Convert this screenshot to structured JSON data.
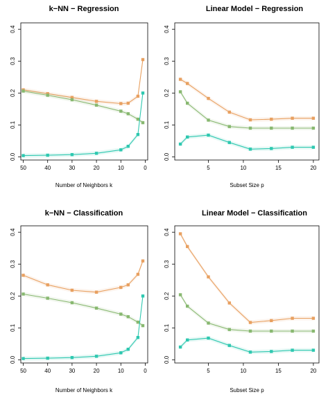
{
  "chart_data": [
    {
      "type": "line",
      "title": "k−NN − Regression",
      "xlabel": "Number of Neighbors k",
      "ylabel": "",
      "xlim": [
        51,
        -1
      ],
      "ylim": [
        -0.01,
        0.42
      ],
      "xticks": [
        50,
        40,
        30,
        20,
        10,
        0
      ],
      "yticks": [
        0.0,
        0.1,
        0.2,
        0.3,
        0.4
      ],
      "x": [
        50,
        40,
        30,
        20,
        10,
        7,
        3,
        1
      ],
      "series": [
        {
          "color": "#e8a060",
          "values": [
            0.21,
            0.198,
            0.186,
            0.174,
            0.167,
            0.168,
            0.19,
            0.305
          ]
        },
        {
          "color": "#88b870",
          "values": [
            0.206,
            0.193,
            0.179,
            0.162,
            0.143,
            0.135,
            0.118,
            0.107
          ]
        },
        {
          "color": "#2ec8b0",
          "values": [
            0.004,
            0.005,
            0.007,
            0.011,
            0.022,
            0.033,
            0.07,
            0.2
          ]
        }
      ]
    },
    {
      "type": "line",
      "title": "Linear Model − Regression",
      "xlabel": "Subset Size p",
      "ylabel": "",
      "xlim": [
        0.2,
        20.8
      ],
      "ylim": [
        -0.01,
        0.42
      ],
      "xticks": [
        5,
        10,
        15,
        20
      ],
      "yticks": [
        0.0,
        0.1,
        0.2,
        0.3,
        0.4
      ],
      "x": [
        1,
        2,
        5,
        8,
        11,
        14,
        17,
        20
      ],
      "series": [
        {
          "color": "#e8a060",
          "values": [
            0.243,
            0.23,
            0.183,
            0.14,
            0.116,
            0.118,
            0.121,
            0.121
          ]
        },
        {
          "color": "#88b870",
          "values": [
            0.204,
            0.168,
            0.115,
            0.095,
            0.09,
            0.09,
            0.09,
            0.09
          ]
        },
        {
          "color": "#2ec8b0",
          "values": [
            0.04,
            0.062,
            0.068,
            0.045,
            0.024,
            0.026,
            0.03,
            0.03
          ]
        }
      ]
    },
    {
      "type": "line",
      "title": "k−NN − Classification",
      "xlabel": "Number of Neighbors k",
      "ylabel": "",
      "xlim": [
        51,
        -1
      ],
      "ylim": [
        -0.01,
        0.42
      ],
      "xticks": [
        50,
        40,
        30,
        20,
        10,
        0
      ],
      "yticks": [
        0.0,
        0.1,
        0.2,
        0.3,
        0.4
      ],
      "x": [
        50,
        40,
        30,
        20,
        10,
        7,
        3,
        1
      ],
      "series": [
        {
          "color": "#e8a060",
          "values": [
            0.265,
            0.235,
            0.218,
            0.212,
            0.227,
            0.235,
            0.268,
            0.31
          ]
        },
        {
          "color": "#88b870",
          "values": [
            0.206,
            0.193,
            0.179,
            0.162,
            0.143,
            0.135,
            0.118,
            0.107
          ]
        },
        {
          "color": "#2ec8b0",
          "values": [
            0.004,
            0.005,
            0.007,
            0.011,
            0.022,
            0.033,
            0.07,
            0.2
          ]
        }
      ]
    },
    {
      "type": "line",
      "title": "Linear Model − Classification",
      "xlabel": "Subset Size p",
      "ylabel": "",
      "xlim": [
        0.2,
        20.8
      ],
      "ylim": [
        -0.01,
        0.42
      ],
      "xticks": [
        5,
        10,
        15,
        20
      ],
      "yticks": [
        0.0,
        0.1,
        0.2,
        0.3,
        0.4
      ],
      "x": [
        1,
        2,
        5,
        8,
        11,
        14,
        17,
        20
      ],
      "series": [
        {
          "color": "#e8a060",
          "values": [
            0.395,
            0.355,
            0.26,
            0.178,
            0.117,
            0.123,
            0.13,
            0.13
          ]
        },
        {
          "color": "#88b870",
          "values": [
            0.204,
            0.168,
            0.115,
            0.095,
            0.09,
            0.09,
            0.09,
            0.09
          ]
        },
        {
          "color": "#2ec8b0",
          "values": [
            0.04,
            0.062,
            0.068,
            0.045,
            0.024,
            0.026,
            0.03,
            0.03
          ]
        }
      ]
    }
  ]
}
